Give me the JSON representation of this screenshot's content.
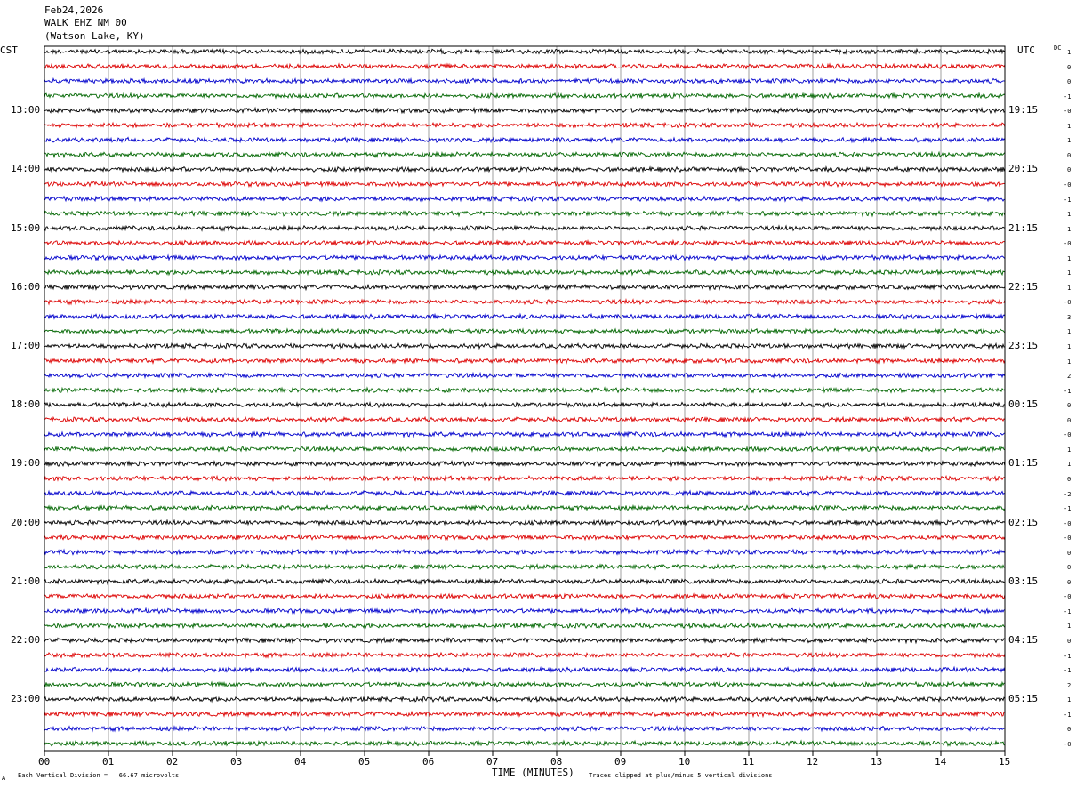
{
  "header": {
    "date": "Feb24,2026",
    "station": "WALK EHZ NM 00",
    "location": "(Watson Lake, KY)"
  },
  "left_axis_title": "CST",
  "right_axis_title": "UTC",
  "dc_title": "DC",
  "footer": {
    "scale_note": "Each Vertical Division =   66.67 microvolts",
    "xlabel": "TIME (MINUTES)",
    "clip_note": "Traces clipped at plus/minus 5 vertical divisions",
    "corner_mark": "A"
  },
  "chart_data": {
    "type": "line",
    "title": "",
    "xlabel": "TIME (MINUTES)",
    "x_range": [
      0,
      15
    ],
    "x_ticks": [
      "00",
      "01",
      "02",
      "03",
      "04",
      "05",
      "06",
      "07",
      "08",
      "09",
      "10",
      "11",
      "12",
      "13",
      "14",
      "15"
    ],
    "grid": "vertical lines each minute",
    "trace_colors": [
      "#000000",
      "#dd0000",
      "#0000cc",
      "#006600"
    ],
    "rows_per_hour": 4,
    "minutes_per_row": 15,
    "rows": 48,
    "left_hour_labels": [
      "13:00",
      "14:00",
      "15:00",
      "16:00",
      "17:00",
      "18:00",
      "19:00",
      "20:00",
      "21:00",
      "22:00",
      "23:00"
    ],
    "right_hour_labels": [
      "19:15",
      "20:15",
      "21:15",
      "22:15",
      "23:15",
      "00:15",
      "01:15",
      "02:15",
      "03:15",
      "04:15",
      "05:15"
    ],
    "dc_offsets": [
      "1",
      "0",
      "0",
      "-1",
      "-0",
      "1",
      "1",
      "0",
      "0",
      "-0",
      "-1",
      "1",
      "1",
      "-0",
      "1",
      "1",
      "1",
      "-0",
      "3",
      "1",
      "1",
      "1",
      "2",
      "-1",
      "0",
      "0",
      "-0",
      "1",
      "1",
      "0",
      "-2",
      "-1",
      "-0",
      "-0",
      "0",
      "0",
      "0",
      "-0",
      "-1",
      "1",
      "0",
      "-1",
      "-1",
      "2",
      "1",
      "-1",
      "0",
      "-0"
    ]
  }
}
